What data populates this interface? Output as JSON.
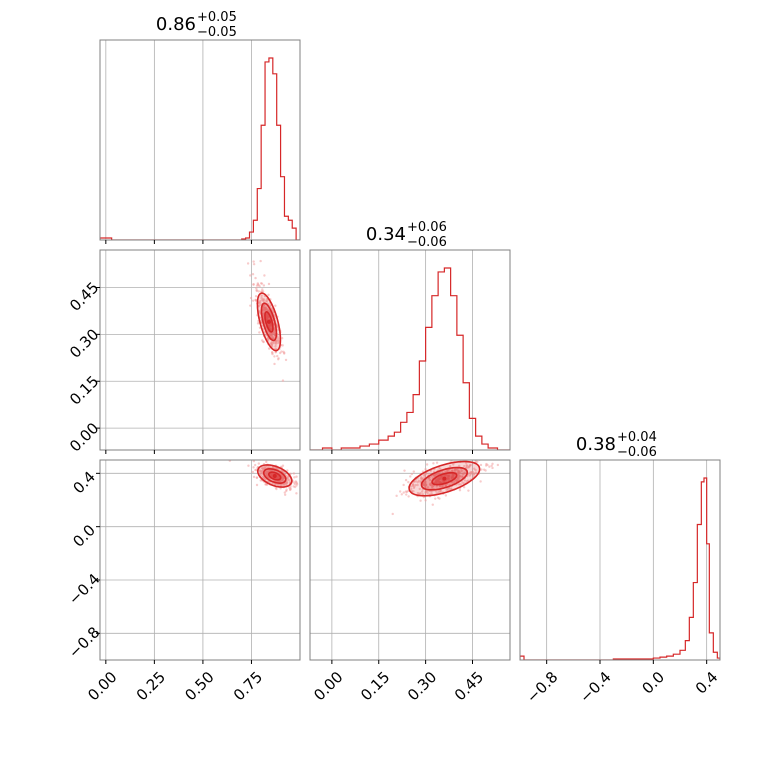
{
  "colors": {
    "accent": "#d62728",
    "grid": "#b0b0b0",
    "frame": "#808080",
    "scatter": "#f2a0a0"
  },
  "chart_data": {
    "type": "corner",
    "parameters": [
      {
        "title_value": "0.86",
        "title_plus": "+0.05",
        "title_minus": "−0.05",
        "range": [
          -0.03,
          1.0
        ],
        "ticks": [
          0,
          0.25,
          0.5,
          0.75
        ],
        "tick_labels": [
          "0.00",
          "0.25",
          "0.50",
          "0.75"
        ]
      },
      {
        "title_value": "0.34",
        "title_plus": "+0.06",
        "title_minus": "−0.06",
        "range": [
          -0.07,
          0.57
        ],
        "ticks": [
          0,
          0.15,
          0.3,
          0.45
        ],
        "tick_labels": [
          "0.00",
          "0.15",
          "0.30",
          "0.45"
        ]
      },
      {
        "title_value": "0.38",
        "title_plus": "+0.04",
        "title_minus": "−0.06",
        "range": [
          -1.0,
          0.5
        ],
        "ticks": [
          -0.8,
          -0.4,
          0,
          0.4
        ],
        "tick_labels": [
          "−0.8",
          "−0.4",
          "0.0",
          "0.4"
        ]
      }
    ],
    "histograms": [
      {
        "param": 0,
        "bins": [
          -0.03,
          0.0,
          0.03,
          0.06,
          0.7,
          0.72,
          0.74,
          0.76,
          0.78,
          0.8,
          0.82,
          0.84,
          0.86,
          0.88,
          0.9,
          0.92,
          0.94,
          0.96,
          0.98,
          1.0
        ],
        "counts": [
          1,
          1,
          0,
          0,
          0.5,
          1,
          4,
          10,
          26,
          58,
          90,
          92,
          84,
          58,
          32,
          12,
          10,
          6,
          0
        ]
      },
      {
        "param": 1,
        "bins": [
          -0.07,
          -0.03,
          0.0,
          0.03,
          0.06,
          0.09,
          0.12,
          0.15,
          0.18,
          0.2,
          0.22,
          0.24,
          0.26,
          0.28,
          0.3,
          0.32,
          0.34,
          0.36,
          0.38,
          0.4,
          0.42,
          0.44,
          0.46,
          0.48,
          0.5,
          0.53,
          0.57
        ],
        "counts": [
          0,
          1,
          0,
          1,
          1,
          2,
          3,
          5,
          7,
          9,
          14,
          19,
          28,
          45,
          62,
          78,
          90,
          92,
          78,
          58,
          34,
          16,
          7,
          3,
          1,
          0
        ]
      },
      {
        "param": 2,
        "bins": [
          -1.0,
          -0.97,
          -0.94,
          -0.3,
          -0.2,
          -0.1,
          0.0,
          0.05,
          0.1,
          0.15,
          0.2,
          0.24,
          0.27,
          0.3,
          0.33,
          0.36,
          0.38,
          0.4,
          0.42,
          0.45,
          0.48,
          0.5
        ],
        "counts": [
          2,
          0,
          0,
          0.5,
          0.5,
          0.5,
          1,
          1.5,
          2,
          3,
          5,
          10,
          22,
          40,
          70,
          92,
          94,
          60,
          14,
          4,
          1
        ]
      }
    ],
    "pairs": [
      {
        "x_param": 0,
        "y_param": 1,
        "x_center": 0.84,
        "y_center": 0.34,
        "slope": -2.3,
        "axis_sd": 0.05,
        "perp_sd": 0.012
      },
      {
        "x_param": 0,
        "y_param": 2,
        "x_center": 0.87,
        "y_center": 0.38,
        "slope": -0.6,
        "axis_sd": 0.05,
        "perp_sd": 0.02
      },
      {
        "x_param": 1,
        "y_param": 2,
        "x_center": 0.36,
        "y_center": 0.36,
        "slope": 0.75,
        "axis_sd": 0.07,
        "perp_sd": 0.02
      }
    ],
    "grid": true
  }
}
